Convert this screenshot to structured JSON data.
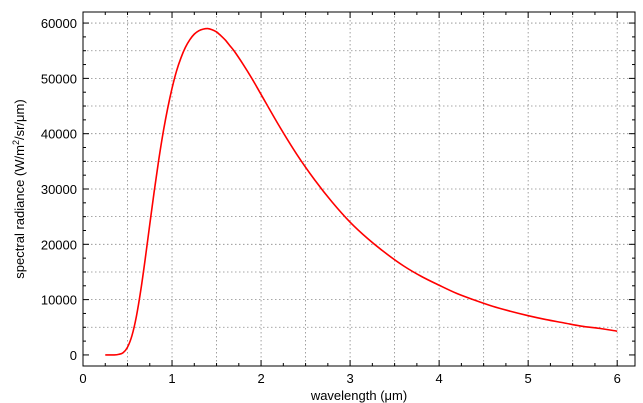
{
  "chart_data": {
    "type": "line",
    "title": "",
    "xlabel": "wavelength (μm)",
    "ylabel_parts": {
      "pre": "spectral radiance (W/m",
      "sup": "2",
      "post": "/sr/μm)"
    },
    "xlim": [
      0,
      6.2
    ],
    "ylim": [
      -2000,
      62000
    ],
    "x_ticks": [
      0,
      1,
      2,
      3,
      4,
      5,
      6
    ],
    "x_tick_labels": [
      "0",
      "1",
      "2",
      "3",
      "4",
      "5",
      "6"
    ],
    "y_ticks": [
      0,
      10000,
      20000,
      30000,
      40000,
      50000,
      60000
    ],
    "y_tick_labels": [
      "0",
      "10000",
      "20000",
      "30000",
      "40000",
      "50000",
      "60000"
    ],
    "grid": true,
    "legend": "none",
    "series": [
      {
        "color": "#ff0000",
        "x": [
          0.25,
          0.3,
          0.35,
          0.4,
          0.45,
          0.5,
          0.55,
          0.6,
          0.65,
          0.7,
          0.75,
          0.8,
          0.85,
          0.9,
          0.95,
          1.0,
          1.05,
          1.1,
          1.15,
          1.2,
          1.25,
          1.3,
          1.35,
          1.4,
          1.45,
          1.5,
          1.55,
          1.6,
          1.65,
          1.7,
          1.8,
          1.9,
          2.0,
          2.2,
          2.4,
          2.6,
          2.8,
          3.0,
          3.2,
          3.4,
          3.6,
          3.8,
          4.0,
          4.2,
          4.4,
          4.6,
          4.8,
          5.0,
          5.2,
          5.4,
          5.6,
          5.8,
          6.0
        ],
        "y": [
          0,
          0,
          0,
          100,
          400,
          1400,
          3500,
          7000,
          11800,
          17500,
          23600,
          29600,
          35200,
          40200,
          44500,
          48200,
          51300,
          53700,
          55600,
          57000,
          58000,
          58600,
          58900,
          59000,
          58800,
          58400,
          57700,
          56900,
          55900,
          54900,
          52500,
          49900,
          47100,
          41500,
          36300,
          31700,
          27600,
          24000,
          21000,
          18400,
          16100,
          14200,
          12600,
          11100,
          9900,
          8800,
          7900,
          7100,
          6400,
          5800,
          5200,
          4800,
          4300
        ]
      }
    ]
  }
}
